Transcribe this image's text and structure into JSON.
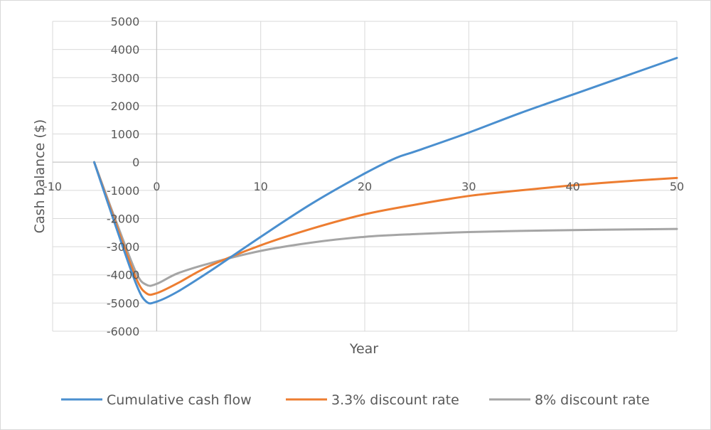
{
  "chart_data": {
    "type": "line",
    "title": "",
    "xlabel": "Year",
    "ylabel": "Cash balance ($)",
    "xlim": [
      -10,
      50
    ],
    "ylim": [
      -6000,
      5000
    ],
    "x_ticks": [
      -10,
      0,
      10,
      20,
      30,
      40,
      50
    ],
    "x_tick_labels": [
      "-10",
      "0",
      "10",
      "20",
      "30",
      "40",
      "50"
    ],
    "y_ticks": [
      5000,
      4000,
      3000,
      2000,
      1000,
      0,
      -1000,
      -2000,
      -3000,
      -4000,
      -5000,
      -6000
    ],
    "y_tick_labels": [
      "5000",
      "4000",
      "3000",
      "2000",
      "1000",
      "0",
      "-1000",
      "-2000",
      "-3000",
      "-4000",
      "-5000",
      "-6000"
    ],
    "grid": true,
    "legend_position": "bottom",
    "series": [
      {
        "name": "Cumulative cash flow",
        "color": "#4a8fcf",
        "x": [
          -6,
          -4,
          -2,
          -1,
          0,
          2,
          5,
          10,
          15,
          20,
          23,
          25,
          30,
          35,
          40,
          45,
          50
        ],
        "y": [
          0,
          -2200,
          -4300,
          -4950,
          -4950,
          -4600,
          -3900,
          -2650,
          -1450,
          -400,
          150,
          400,
          1050,
          1750,
          2400,
          3050,
          3700
        ]
      },
      {
        "name": "3.3% discount rate",
        "color": "#ed7d31",
        "x": [
          -6,
          -4,
          -2,
          -1,
          0,
          2,
          5,
          10,
          15,
          20,
          25,
          30,
          35,
          40,
          45,
          50
        ],
        "y": [
          0,
          -2100,
          -4100,
          -4650,
          -4650,
          -4300,
          -3700,
          -2950,
          -2350,
          -1850,
          -1500,
          -1200,
          -1000,
          -820,
          -680,
          -560
        ]
      },
      {
        "name": "8% discount rate",
        "color": "#a5a5a5",
        "x": [
          -6,
          -4,
          -2,
          -1,
          0,
          2,
          5,
          10,
          15,
          20,
          25,
          30,
          35,
          40,
          45,
          50
        ],
        "y": [
          0,
          -2000,
          -3900,
          -4350,
          -4320,
          -3950,
          -3600,
          -3150,
          -2850,
          -2650,
          -2550,
          -2480,
          -2440,
          -2410,
          -2390,
          -2370
        ]
      }
    ]
  }
}
